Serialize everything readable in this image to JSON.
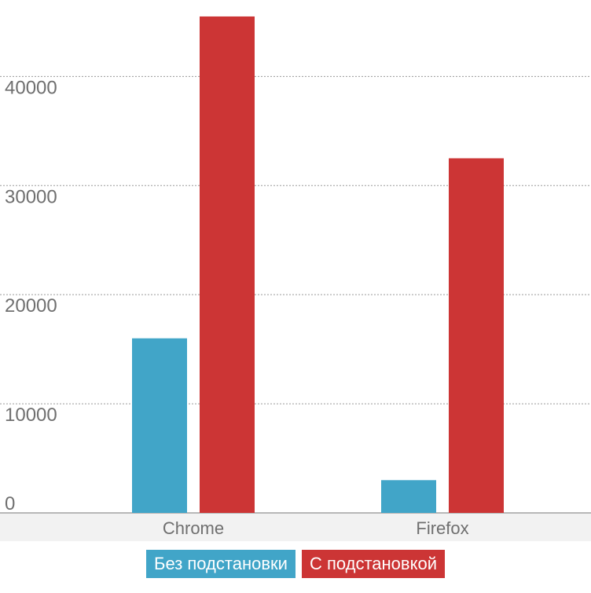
{
  "chart_data": {
    "type": "bar",
    "categories": [
      "Chrome",
      "Firefox"
    ],
    "series": [
      {
        "name": "Без подстановки",
        "color": "#41a5c8",
        "values": [
          16000,
          3000
        ]
      },
      {
        "name": "С подстановкой",
        "color": "#cc3535",
        "values": [
          45500,
          32500
        ]
      }
    ],
    "ylim": [
      0,
      46000
    ],
    "yticks": [
      "0",
      "10000",
      "20000",
      "30000",
      "40000"
    ],
    "ytick_values": [
      0,
      10000,
      20000,
      30000,
      40000
    ],
    "grid": true,
    "legend_position": "bottom-center",
    "title": "",
    "xlabel": "",
    "ylabel": ""
  }
}
